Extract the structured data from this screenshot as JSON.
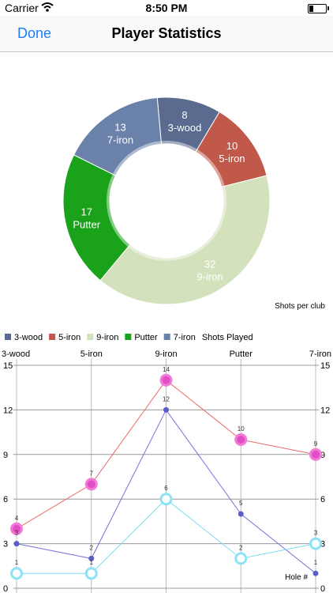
{
  "status_bar": {
    "carrier": "Carrier",
    "time": "8:50 PM"
  },
  "nav": {
    "done_label": "Done",
    "title": "Player Statistics"
  },
  "chart_data": [
    {
      "type": "pie",
      "donut": true,
      "description": "Shots per club",
      "slices": [
        {
          "label": "3-wood",
          "value": 8,
          "color": "#5a6b8f"
        },
        {
          "label": "5-iron",
          "value": 10,
          "color": "#c0594a"
        },
        {
          "label": "9-iron",
          "value": 32,
          "color": "#d3e2bd"
        },
        {
          "label": "Putter",
          "value": 17,
          "color": "#1aa31a"
        },
        {
          "label": "7-iron",
          "value": 13,
          "color": "#6a82aa"
        }
      ]
    },
    {
      "type": "line",
      "legend": [
        {
          "label": "3-wood",
          "color": "#5a6b8f"
        },
        {
          "label": "5-iron",
          "color": "#c0594a"
        },
        {
          "label": "9-iron",
          "color": "#d3e2bd"
        },
        {
          "label": "Putter",
          "color": "#1aa31a"
        },
        {
          "label": "7-iron",
          "color": "#6a82aa"
        },
        {
          "label": "Shots Played",
          "color": null
        }
      ],
      "categories": [
        "3-wood",
        "5-iron",
        "9-iron",
        "Putter",
        "7-iron"
      ],
      "ylim": [
        0,
        15
      ],
      "yticks": [
        0,
        3,
        6,
        9,
        12,
        15
      ],
      "description": "Hole #",
      "series": [
        {
          "values": [
            4,
            7,
            14,
            10,
            9
          ],
          "color": "#ec6a6a",
          "marker": "pink-filled"
        },
        {
          "values": [
            3,
            2,
            12,
            5,
            1
          ],
          "color": "#7a70d8",
          "marker": "purple-dot"
        },
        {
          "values": [
            1,
            1,
            6,
            2,
            3
          ],
          "color": "#7adcf0",
          "marker": "cyan-ring"
        }
      ]
    }
  ]
}
